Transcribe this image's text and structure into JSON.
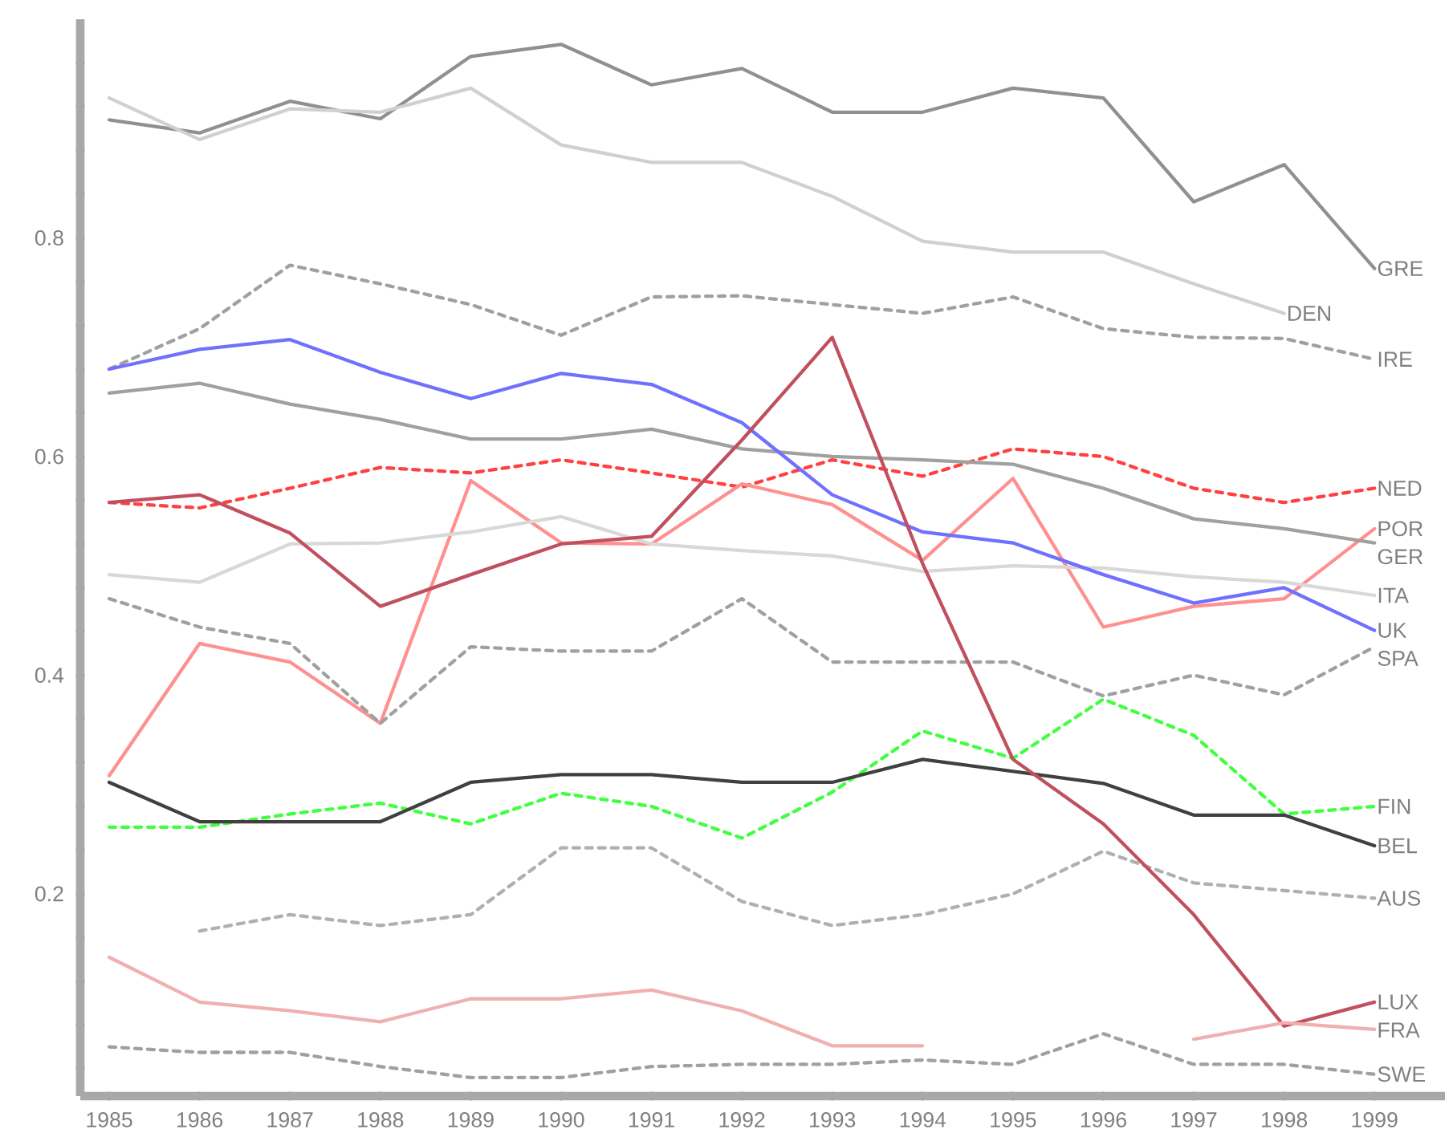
{
  "chart_data": {
    "type": "line",
    "x": [
      1985,
      1986,
      1987,
      1988,
      1989,
      1990,
      1991,
      1992,
      1993,
      1994,
      1995,
      1996,
      1997,
      1998,
      1999
    ],
    "xlim": [
      1984.68,
      1999.78
    ],
    "xticks": [
      1985,
      1986,
      1987,
      1988,
      1989,
      1990,
      1991,
      1992,
      1993,
      1994,
      1995,
      1996,
      1997,
      1998,
      1999
    ],
    "ylim": [
      0.015,
      1.0
    ],
    "yticks": [
      {
        "value": 0.04,
        "label": null
      },
      {
        "value": 0.08,
        "label": null
      },
      {
        "value": 0.12,
        "label": null
      },
      {
        "value": 0.16,
        "label": null
      },
      0.2,
      {
        "value": 0.24,
        "label": null
      },
      {
        "value": 0.28,
        "label": null
      },
      {
        "value": 0.32,
        "label": null
      },
      {
        "value": 0.36,
        "label": null
      },
      0.4,
      {
        "value": 0.44,
        "label": null
      },
      {
        "value": 0.48,
        "label": null
      },
      {
        "value": 0.52,
        "label": null
      },
      {
        "value": 0.56,
        "label": null
      },
      0.6,
      {
        "value": 0.64,
        "label": null
      },
      {
        "value": 0.68,
        "label": null
      },
      {
        "value": 0.72,
        "label": null
      },
      {
        "value": 0.76,
        "label": null
      },
      0.8,
      {
        "value": 0.84,
        "label": null
      },
      {
        "value": 0.88,
        "label": null
      },
      {
        "value": 0.92,
        "label": null
      },
      {
        "value": 0.96,
        "label": null
      }
    ],
    "series": [
      {
        "name": "GRE",
        "color": "#909090",
        "line_style": "solid",
        "values": [
          0.908,
          0.896,
          0.925,
          0.909,
          0.966,
          0.977,
          0.94,
          0.955,
          0.915,
          0.915,
          0.937,
          0.928,
          0.833,
          0.867,
          0.772
        ]
      },
      {
        "name": "DEN",
        "color": "#d0d0d0",
        "line_style": "solid",
        "values": [
          0.928,
          0.89,
          0.918,
          0.915,
          0.937,
          0.885,
          0.869,
          0.869,
          0.838,
          0.797,
          0.787,
          0.787,
          0.758,
          0.731,
          null
        ]
      },
      {
        "name": "IRE",
        "color": "#a0a0a0",
        "line_style": "dashed",
        "values": [
          0.68,
          0.717,
          0.775,
          0.758,
          0.739,
          0.711,
          0.746,
          0.747,
          0.739,
          0.731,
          0.746,
          0.717,
          0.709,
          0.708,
          0.689
        ]
      },
      {
        "name": "NED",
        "color": "#ff4040",
        "line_style": "dashed",
        "values": [
          0.558,
          0.553,
          0.571,
          0.59,
          0.585,
          0.597,
          0.585,
          0.572,
          0.597,
          0.582,
          0.607,
          0.6,
          0.571,
          0.558,
          0.571
        ]
      },
      {
        "name": "POR",
        "color": "#ff9090",
        "line_style": "solid",
        "values": [
          0.308,
          0.429,
          0.412,
          0.356,
          0.578,
          0.521,
          0.52,
          0.575,
          0.556,
          0.505,
          0.58,
          0.444,
          0.463,
          0.47,
          0.534
        ]
      },
      {
        "name": "GER",
        "color": "#a0a0a0",
        "line_style": "solid",
        "values": [
          0.658,
          0.667,
          0.648,
          0.634,
          0.616,
          0.616,
          0.625,
          0.607,
          0.6,
          0.597,
          0.593,
          0.571,
          0.543,
          0.534,
          0.521
        ]
      },
      {
        "name": "ITA",
        "color": "#d8d8d8",
        "line_style": "solid",
        "values": [
          0.492,
          0.485,
          0.52,
          0.521,
          0.531,
          0.545,
          0.52,
          0.514,
          0.509,
          0.495,
          0.5,
          0.498,
          0.49,
          0.485,
          0.473
        ]
      },
      {
        "name": "UK",
        "color": "#7070ff",
        "line_style": "solid",
        "values": [
          0.68,
          0.698,
          0.707,
          0.677,
          0.653,
          0.676,
          0.666,
          0.631,
          0.565,
          0.531,
          0.521,
          0.492,
          0.466,
          0.48,
          0.441
        ]
      },
      {
        "name": "SPA",
        "color": "#a0a0a0",
        "line_style": "dashed",
        "values": [
          0.47,
          0.444,
          0.429,
          0.356,
          0.426,
          0.422,
          0.422,
          0.47,
          0.412,
          0.412,
          0.412,
          0.381,
          0.4,
          0.382,
          0.426
        ]
      },
      {
        "name": "FIN",
        "color": "#40ff40",
        "line_style": "dashed",
        "values": [
          0.261,
          0.261,
          0.273,
          0.283,
          0.264,
          0.292,
          0.28,
          0.251,
          0.293,
          0.349,
          0.324,
          0.378,
          0.345,
          0.273,
          0.28
        ]
      },
      {
        "name": "BEL",
        "color": "#404040",
        "line_style": "solid",
        "values": [
          0.302,
          0.266,
          0.266,
          0.266,
          0.302,
          0.309,
          0.309,
          0.302,
          0.302,
          0.323,
          0.312,
          0.301,
          0.272,
          0.272,
          0.244
        ]
      },
      {
        "name": "AUS",
        "color": "#b0b0b0",
        "line_style": "dashed",
        "values": [
          null,
          0.166,
          0.181,
          0.171,
          0.181,
          0.242,
          0.242,
          0.193,
          0.171,
          0.181,
          0.2,
          0.239,
          0.21,
          0.203,
          0.196
        ]
      },
      {
        "name": "LUX",
        "color": "#c05060",
        "line_style": "solid",
        "values": [
          0.558,
          0.565,
          0.53,
          0.463,
          0.492,
          0.52,
          0.527,
          0.615,
          0.709,
          0.502,
          0.323,
          0.264,
          0.181,
          0.079,
          0.101
        ]
      },
      {
        "name": "FRA",
        "color": "#f0b0b0",
        "line_style": "solid",
        "values": [
          0.142,
          0.101,
          0.093,
          0.083,
          0.104,
          0.104,
          0.112,
          0.093,
          0.061,
          0.061,
          null,
          null,
          0.067,
          0.082,
          0.076
        ]
      },
      {
        "name": "SWE",
        "color": "#a0a0a0",
        "line_style": "dashed",
        "values": [
          0.06,
          0.055,
          0.055,
          0.042,
          0.032,
          0.032,
          0.042,
          0.044,
          0.044,
          0.048,
          0.044,
          0.072,
          0.044,
          0.044,
          0.035
        ]
      }
    ]
  }
}
